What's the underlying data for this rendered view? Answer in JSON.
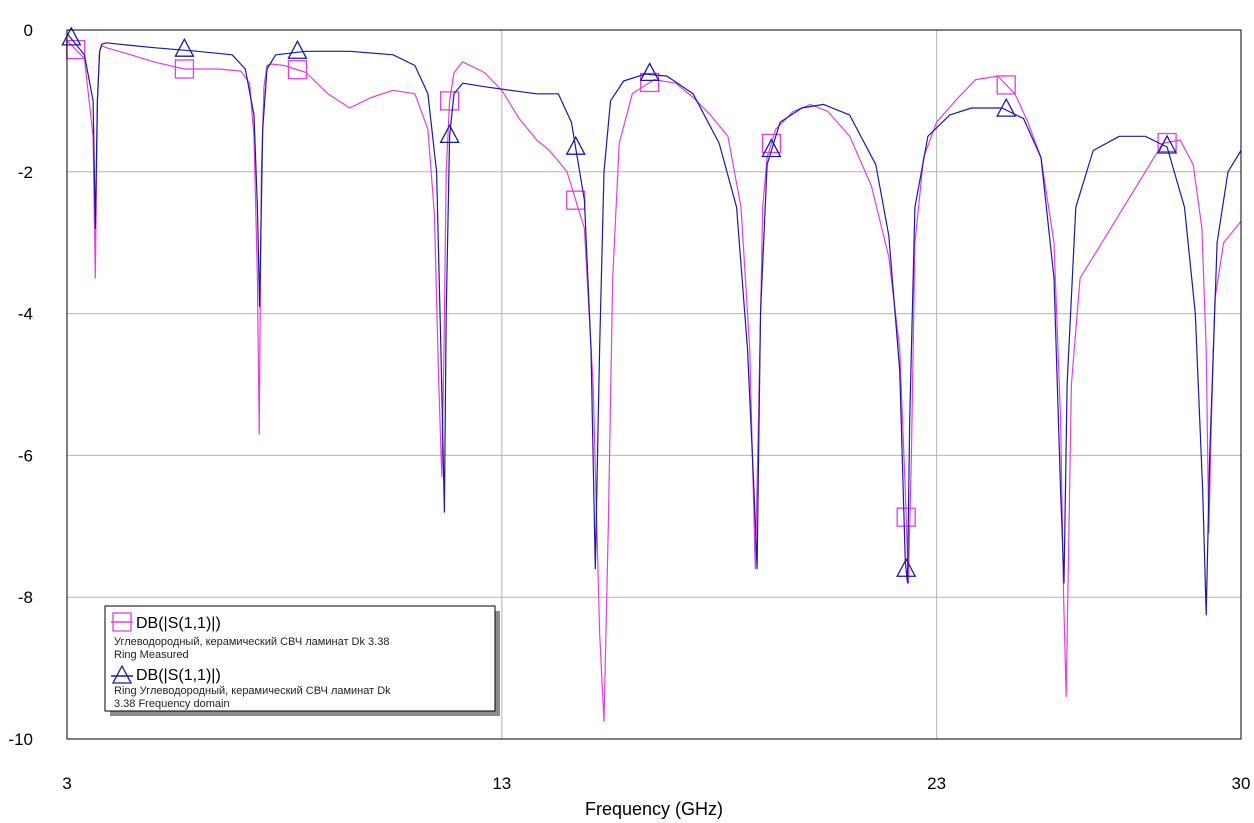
{
  "chart_data": {
    "type": "line",
    "xlabel": "Frequency (GHz)",
    "ylabel": "",
    "xlim": [
      3,
      30
    ],
    "ylim": [
      -10,
      0
    ],
    "x_ticks": [
      3,
      13,
      23,
      30
    ],
    "y_ticks": [
      0,
      -2,
      -4,
      -6,
      -8,
      -10
    ],
    "grid": true,
    "legend_placement": "bottom-left",
    "series": [
      {
        "name": "DB(|S(1,1)|)",
        "description": "Углеводородный, керамический СВЧ ламинат Dk 3.38 Ring Measured",
        "color": "#e040e0",
        "marker": "square",
        "x": [
          3.0,
          3.4,
          3.6,
          3.65,
          3.7,
          3.75,
          3.8,
          3.9,
          4.2,
          5.0,
          5.7,
          6.5,
          7.0,
          7.2,
          7.3,
          7.38,
          7.42,
          7.47,
          7.53,
          7.6,
          7.7,
          8.0,
          8.5,
          9.0,
          9.5,
          10.0,
          10.5,
          11.0,
          11.3,
          11.45,
          11.55,
          11.62,
          11.67,
          11.72,
          11.8,
          11.9,
          12.1,
          12.6,
          13.0,
          13.4,
          13.8,
          14.1,
          14.5,
          14.9,
          15.1,
          15.25,
          15.35,
          15.45,
          15.55,
          15.7,
          16.0,
          16.5,
          17.0,
          17.4,
          17.8,
          18.2,
          18.5,
          18.7,
          18.83,
          18.92,
          19.0,
          19.1,
          19.3,
          19.7,
          20.1,
          20.5,
          21.0,
          21.5,
          21.9,
          22.15,
          22.28,
          22.35,
          22.42,
          22.5,
          22.7,
          23.0,
          23.5,
          23.9,
          24.4,
          24.8,
          25.1,
          25.4,
          25.7,
          25.85,
          25.92,
          25.98,
          26.03,
          26.1,
          26.3,
          26.8,
          27.3,
          27.8,
          28.2,
          28.6,
          28.9,
          29.1,
          29.2,
          29.26,
          29.32,
          29.4,
          29.6,
          29.8,
          30.0
        ],
        "values": [
          -0.15,
          -0.4,
          -1.5,
          -3.5,
          -1.0,
          -0.3,
          -0.22,
          -0.25,
          -0.3,
          -0.45,
          -0.55,
          -0.55,
          -0.58,
          -0.75,
          -1.5,
          -3.5,
          -5.7,
          -2.0,
          -0.8,
          -0.5,
          -0.48,
          -0.5,
          -0.6,
          -0.9,
          -1.1,
          -0.95,
          -0.85,
          -0.9,
          -1.4,
          -2.6,
          -5.0,
          -6.3,
          -4.5,
          -2.0,
          -1.0,
          -0.6,
          -0.45,
          -0.6,
          -0.85,
          -1.25,
          -1.55,
          -1.7,
          -2.0,
          -2.8,
          -5.0,
          -8.5,
          -9.75,
          -7.0,
          -3.5,
          -1.6,
          -0.9,
          -0.7,
          -0.75,
          -0.95,
          -1.2,
          -1.5,
          -2.5,
          -4.5,
          -7.6,
          -5.0,
          -2.5,
          -1.8,
          -1.4,
          -1.15,
          -1.05,
          -1.15,
          -1.5,
          -2.2,
          -3.2,
          -4.5,
          -6.5,
          -7.8,
          -6.0,
          -3.0,
          -1.8,
          -1.3,
          -0.95,
          -0.7,
          -0.65,
          -0.9,
          -1.3,
          -1.8,
          -3.0,
          -5.5,
          -8.0,
          -9.4,
          -7.5,
          -5.0,
          -3.5,
          -3.0,
          -2.5,
          -2.0,
          -1.6,
          -1.55,
          -1.9,
          -2.8,
          -4.5,
          -7.1,
          -5.5,
          -3.8,
          -3.0,
          -2.85,
          -2.7
        ]
      },
      {
        "name": "DB(|S(1,1)|)",
        "description": "Ring Углеводородный, керамический СВЧ ламинат Dk 3.38 Frequency domain",
        "color": "#1a1aa0",
        "marker": "triangle",
        "x": [
          3.0,
          3.4,
          3.6,
          3.65,
          3.7,
          3.75,
          3.8,
          3.9,
          4.2,
          5.0,
          6.0,
          6.8,
          7.1,
          7.3,
          7.38,
          7.43,
          7.5,
          7.6,
          7.8,
          8.5,
          9.5,
          10.5,
          11.0,
          11.3,
          11.5,
          11.6,
          11.68,
          11.72,
          11.8,
          11.9,
          12.1,
          12.6,
          13.2,
          13.8,
          14.3,
          14.6,
          14.9,
          15.05,
          15.15,
          15.25,
          15.35,
          15.5,
          15.8,
          16.3,
          16.8,
          17.4,
          18.0,
          18.4,
          18.65,
          18.8,
          18.87,
          18.95,
          19.1,
          19.4,
          19.9,
          20.4,
          21.0,
          21.6,
          21.9,
          22.15,
          22.28,
          22.33,
          22.38,
          22.5,
          22.8,
          23.3,
          23.8,
          24.5,
          25.0,
          25.4,
          25.7,
          25.85,
          25.93,
          26.0,
          26.2,
          26.6,
          27.2,
          27.8,
          28.3,
          28.7,
          28.95,
          29.12,
          29.2,
          29.28,
          29.45,
          29.7,
          30.0
        ],
        "values": [
          -0.05,
          -0.35,
          -1.0,
          -2.8,
          -1.0,
          -0.3,
          -0.2,
          -0.18,
          -0.2,
          -0.25,
          -0.3,
          -0.35,
          -0.55,
          -1.2,
          -2.5,
          -3.9,
          -1.4,
          -0.55,
          -0.35,
          -0.3,
          -0.3,
          -0.35,
          -0.5,
          -0.9,
          -2.0,
          -4.5,
          -6.8,
          -4.0,
          -1.5,
          -0.9,
          -0.75,
          -0.8,
          -0.85,
          -0.9,
          -0.9,
          -1.3,
          -2.4,
          -4.5,
          -7.6,
          -4.5,
          -2.0,
          -1.0,
          -0.72,
          -0.62,
          -0.65,
          -0.9,
          -1.6,
          -2.5,
          -4.5,
          -6.5,
          -7.6,
          -4.0,
          -1.9,
          -1.3,
          -1.1,
          -1.05,
          -1.2,
          -1.9,
          -2.9,
          -4.8,
          -7.5,
          -7.8,
          -5.5,
          -2.5,
          -1.5,
          -1.2,
          -1.1,
          -1.1,
          -1.25,
          -1.8,
          -3.5,
          -6.5,
          -7.8,
          -5.0,
          -2.5,
          -1.7,
          -1.5,
          -1.5,
          -1.65,
          -2.5,
          -4.0,
          -6.5,
          -8.25,
          -6.0,
          -3.0,
          -2.0,
          -1.7
        ]
      }
    ]
  },
  "legend": {
    "entries": [
      {
        "label": "DB(|S(1,1)|)",
        "desc_line1": "Углеводородный, керамический СВЧ ламинат Dk 3.38",
        "desc_line2": "Ring Measured"
      },
      {
        "label": "DB(|S(1,1)|)",
        "desc_line1": "Ring Углеводородный, керамический СВЧ ламинат Dk",
        "desc_line2": "3.38 Frequency domain"
      }
    ]
  }
}
